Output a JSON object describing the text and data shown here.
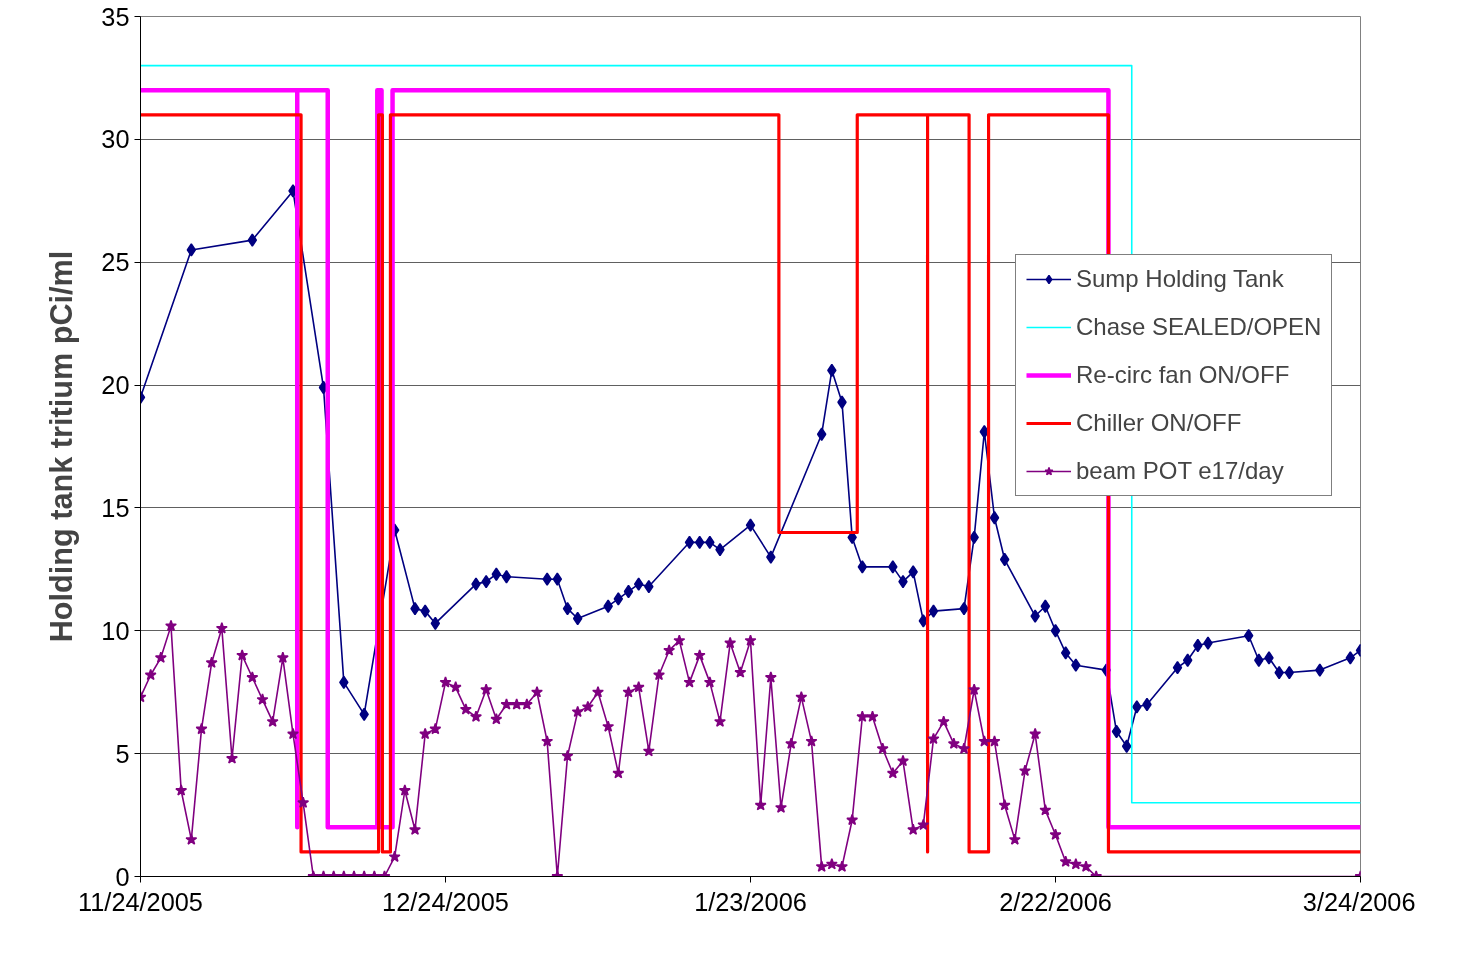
{
  "chart_data": {
    "type": "line",
    "ylabel": "Holding tank tritium pCi/ml",
    "xlim": [
      "2005-11-24",
      "2006-03-24"
    ],
    "xticks": [
      {
        "value": "2005-11-24",
        "label": "11/24/2005"
      },
      {
        "value": "2005-12-24",
        "label": "12/24/2005"
      },
      {
        "value": "2006-01-23",
        "label": "1/23/2006"
      },
      {
        "value": "2006-02-22",
        "label": "2/22/2006"
      },
      {
        "value": "2006-03-24",
        "label": "3/24/2006"
      }
    ],
    "ylim": [
      0,
      35
    ],
    "yticks": [
      0,
      5,
      10,
      15,
      20,
      25,
      30,
      35
    ],
    "grid": "y",
    "legend": "top right",
    "series": [
      {
        "name": "Sump Holding Tank",
        "color": "#000080",
        "marker": "diamond",
        "x": [
          "2005-11-24",
          "2005-11-29",
          "2005-12-05",
          "2005-12-09",
          "2005-12-12",
          "2005-12-14",
          "2005-12-16",
          "2005-12-19",
          "2005-12-21",
          "2005-12-22",
          "2005-12-23",
          "2005-12-27",
          "2005-12-28",
          "2005-12-29",
          "2005-12-30",
          "2006-01-03",
          "2006-01-04",
          "2006-01-05",
          "2006-01-06",
          "2006-01-09",
          "2006-01-10",
          "2006-01-11",
          "2006-01-12",
          "2006-01-13",
          "2006-01-17",
          "2006-01-18",
          "2006-01-19",
          "2006-01-20",
          "2006-01-23",
          "2006-01-25",
          "2006-01-30",
          "2006-01-31",
          "2006-02-01",
          "2006-02-02",
          "2006-02-03",
          "2006-02-06",
          "2006-02-07",
          "2006-02-08",
          "2006-02-09",
          "2006-02-10",
          "2006-02-13",
          "2006-02-14",
          "2006-02-15",
          "2006-02-16",
          "2006-02-17",
          "2006-02-20",
          "2006-02-21",
          "2006-02-22",
          "2006-02-23",
          "2006-02-24",
          "2006-02-27",
          "2006-02-28",
          "2006-03-01",
          "2006-03-02",
          "2006-03-03",
          "2006-03-06",
          "2006-03-07",
          "2006-03-08",
          "2006-03-09",
          "2006-03-13",
          "2006-03-14",
          "2006-03-15",
          "2006-03-16",
          "2006-03-17",
          "2006-03-20",
          "2006-03-23",
          "2006-03-24"
        ],
        "values": [
          19.5,
          25.5,
          25.9,
          27.9,
          19.9,
          7.9,
          6.6,
          14.1,
          10.9,
          10.8,
          10.3,
          11.9,
          12.0,
          12.3,
          12.2,
          12.1,
          12.1,
          10.9,
          10.5,
          11.0,
          11.3,
          11.6,
          11.9,
          11.8,
          13.6,
          13.6,
          13.6,
          13.3,
          14.3,
          13.0,
          18.0,
          20.6,
          19.3,
          13.8,
          12.6,
          12.6,
          12.0,
          12.4,
          10.4,
          10.8,
          10.9,
          13.8,
          18.1,
          14.6,
          12.9,
          10.6,
          11.0,
          10.0,
          9.1,
          8.6,
          8.4,
          5.9,
          5.3,
          6.9,
          7.0,
          8.5,
          8.8,
          9.4,
          9.5,
          9.8,
          8.8,
          8.9,
          8.3,
          8.3,
          8.4,
          8.9,
          9.2
        ]
      },
      {
        "name": "Chase SEALED/OPEN",
        "color": "#00ffff",
        "marker": "none",
        "x": [
          "2005-11-24",
          "2006-03-01T12:00",
          "2006-03-01T12:00",
          "2006-03-24"
        ],
        "values": [
          33,
          33,
          3,
          3
        ]
      },
      {
        "name": "Re-circ fan ON/OFF",
        "color": "#ff00ff",
        "marker": "none",
        "x": [
          "2005-11-24",
          "2005-12-09T10:00",
          "2005-12-09T10:00",
          "2005-12-09T10:00",
          "2005-12-12T10:00",
          "2005-12-12T10:00",
          "2005-12-17T07:00",
          "2005-12-17T07:00",
          "2005-12-17T17:00",
          "2005-12-17T17:00",
          "2005-12-18T19:00",
          "2005-12-18T19:00",
          "2006-02-27T05:00",
          "2006-02-27T05:00",
          "2006-03-24"
        ],
        "values": [
          32,
          32,
          2,
          32,
          32,
          2,
          2,
          32,
          32,
          2,
          2,
          32,
          32,
          2,
          2
        ]
      },
      {
        "name": "Chiller ON/OFF",
        "color": "#ff0000",
        "marker": "none",
        "x": [
          "2005-11-24",
          "2005-12-09T19:00",
          "2005-12-09T19:00",
          "2005-12-17T10:00",
          "2005-12-17T10:00",
          "2005-12-17T19:00",
          "2005-12-17T19:00",
          "2005-12-18T14:00",
          "2005-12-18T14:00",
          "2006-01-25T19:00",
          "2006-01-25T19:00",
          "2006-02-02T12:00",
          "2006-02-02T12:00",
          "2006-02-09T10:00",
          "2006-02-09T10:00",
          "2006-02-09T10:00",
          "2006-02-13T12:00",
          "2006-02-13T12:00",
          "2006-02-15T10:00",
          "2006-02-15T10:00",
          "2006-02-27T05:00",
          "2006-02-27T05:00",
          "2006-03-24"
        ],
        "values": [
          31,
          31,
          1,
          1,
          31,
          31,
          1,
          1,
          31,
          31,
          14,
          14,
          31,
          31,
          1,
          31,
          31,
          1,
          1,
          31,
          31,
          1,
          1
        ]
      },
      {
        "name": "beam POT e17/day",
        "color": "#800080",
        "marker": "star",
        "x": [
          "2005-11-24",
          "2005-11-25",
          "2005-11-26",
          "2005-11-27",
          "2005-11-28",
          "2005-11-29",
          "2005-11-30",
          "2005-12-01",
          "2005-12-02",
          "2005-12-03",
          "2005-12-04",
          "2005-12-05",
          "2005-12-06",
          "2005-12-07",
          "2005-12-08",
          "2005-12-09",
          "2005-12-10",
          "2005-12-11",
          "2005-12-12",
          "2005-12-13",
          "2005-12-14",
          "2005-12-15",
          "2005-12-16",
          "2005-12-17",
          "2005-12-18",
          "2005-12-19",
          "2005-12-20",
          "2005-12-21",
          "2005-12-22",
          "2005-12-23",
          "2005-12-24",
          "2005-12-25",
          "2005-12-26",
          "2005-12-27",
          "2005-12-28",
          "2005-12-29",
          "2005-12-30",
          "2005-12-31",
          "2006-01-01",
          "2006-01-02",
          "2006-01-03",
          "2006-01-04",
          "2006-01-05",
          "2006-01-06",
          "2006-01-07",
          "2006-01-08",
          "2006-01-09",
          "2006-01-10",
          "2006-01-11",
          "2006-01-12",
          "2006-01-13",
          "2006-01-14",
          "2006-01-15",
          "2006-01-16",
          "2006-01-17",
          "2006-01-18",
          "2006-01-19",
          "2006-01-20",
          "2006-01-21",
          "2006-01-22",
          "2006-01-23",
          "2006-01-24",
          "2006-01-25",
          "2006-01-26",
          "2006-01-27",
          "2006-01-28",
          "2006-01-29",
          "2006-01-30",
          "2006-01-31",
          "2006-02-01",
          "2006-02-02",
          "2006-02-03",
          "2006-02-04",
          "2006-02-05",
          "2006-02-06",
          "2006-02-07",
          "2006-02-08",
          "2006-02-09",
          "2006-02-10",
          "2006-02-11",
          "2006-02-12",
          "2006-02-13",
          "2006-02-14",
          "2006-02-15",
          "2006-02-16",
          "2006-02-17",
          "2006-02-18",
          "2006-02-19",
          "2006-02-20",
          "2006-02-21",
          "2006-02-22",
          "2006-02-23",
          "2006-02-24",
          "2006-02-25",
          "2006-02-26",
          "2006-03-24"
        ],
        "values": [
          7.3,
          8.2,
          8.9,
          10.2,
          3.5,
          1.5,
          6.0,
          8.7,
          10.1,
          4.8,
          9.0,
          8.1,
          7.2,
          6.3,
          8.9,
          5.8,
          3.0,
          0,
          0,
          0,
          0,
          0,
          0,
          0,
          0,
          0.8,
          3.5,
          1.9,
          5.8,
          6.0,
          7.9,
          7.7,
          6.8,
          6.5,
          7.6,
          6.4,
          7.0,
          7.0,
          7.0,
          7.5,
          5.5,
          0,
          4.9,
          6.7,
          6.9,
          7.5,
          6.1,
          4.2,
          7.5,
          7.7,
          5.1,
          8.2,
          9.2,
          9.6,
          7.9,
          9.0,
          7.9,
          6.3,
          9.5,
          8.3,
          9.6,
          2.9,
          8.1,
          2.8,
          5.4,
          7.3,
          5.5,
          0.4,
          0.5,
          0.4,
          2.3,
          6.5,
          6.5,
          5.2,
          4.2,
          4.7,
          1.9,
          2.1,
          5.6,
          6.3,
          5.4,
          5.2,
          7.6,
          5.5,
          5.5,
          2.9,
          1.5,
          4.3,
          5.8,
          2.7,
          1.7,
          0.6,
          0.5,
          0.4,
          0,
          0
        ]
      }
    ]
  }
}
